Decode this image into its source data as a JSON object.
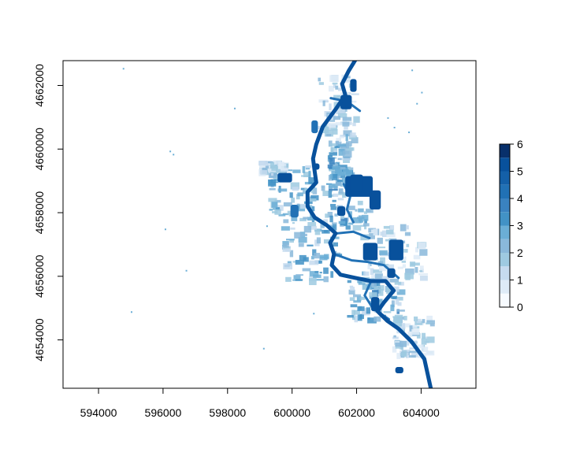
{
  "chart_data": {
    "type": "heatmap",
    "title": "",
    "xlabel": "",
    "ylabel": "",
    "xlim": [
      592900,
      605700
    ],
    "ylim": [
      4652480,
      4662780
    ],
    "x_ticks": [
      594000,
      596000,
      598000,
      600000,
      602000,
      604000
    ],
    "y_ticks": [
      4654000,
      4656000,
      4658000,
      4660000,
      4662000
    ],
    "x_tick_labels": [
      "594000",
      "596000",
      "598000",
      "600000",
      "602000",
      "604000"
    ],
    "y_tick_labels": [
      "4654000",
      "4656000",
      "4658000",
      "4660000",
      "4662000"
    ],
    "legend": {
      "type": "colorbar",
      "placement": "right",
      "range": [
        0,
        6
      ],
      "ticks": [
        "0",
        "1",
        "2",
        "3",
        "4",
        "5",
        "6"
      ],
      "breaks": [
        0,
        0.5,
        1,
        1.5,
        2,
        2.5,
        3,
        3.5,
        4,
        4.5,
        5,
        5.5,
        6
      ]
    },
    "colors": [
      "#f7fbff",
      "#deebf7",
      "#c6dbef",
      "#9ecae1",
      "#8ab8da",
      "#6baed6",
      "#4292c6",
      "#3a82c0",
      "#2171b5",
      "#1460a8",
      "#08519c",
      "#08306b"
    ],
    "grid": false,
    "features": {
      "river_channel": [
        [
          601950,
          4662780
        ],
        [
          601750,
          4662450
        ],
        [
          601550,
          4662050
        ],
        [
          601650,
          4661700
        ],
        [
          601350,
          4661250
        ],
        [
          600950,
          4660700
        ],
        [
          600750,
          4660150
        ],
        [
          600650,
          4659700
        ],
        [
          600700,
          4659300
        ],
        [
          600750,
          4658950
        ],
        [
          600480,
          4658650
        ],
        [
          600480,
          4658200
        ],
        [
          600700,
          4657850
        ],
        [
          601080,
          4657600
        ],
        [
          601350,
          4657350
        ],
        [
          601180,
          4657050
        ],
        [
          601300,
          4656700
        ],
        [
          601230,
          4656350
        ],
        [
          601500,
          4656050
        ],
        [
          601950,
          4655950
        ],
        [
          602450,
          4655850
        ],
        [
          602900,
          4655850
        ],
        [
          603150,
          4655550
        ],
        [
          602850,
          4655180
        ],
        [
          602650,
          4654900
        ],
        [
          602950,
          4654600
        ],
        [
          603300,
          4654350
        ],
        [
          603700,
          4653950
        ],
        [
          604100,
          4653400
        ],
        [
          604300,
          4652480
        ]
      ],
      "secondary_channels": [
        [
          [
            601300,
            4656700
          ],
          [
            601850,
            4656500
          ],
          [
            602350,
            4656450
          ],
          [
            602850,
            4656350
          ],
          [
            603300,
            4655950
          ]
        ],
        [
          [
            601400,
            4657350
          ],
          [
            601900,
            4657400
          ],
          [
            602400,
            4657200
          ]
        ],
        [
          [
            601600,
            4658900
          ],
          [
            601800,
            4658500
          ],
          [
            601700,
            4658100
          ],
          [
            601900,
            4657700
          ]
        ],
        [
          [
            602450,
            4655850
          ],
          [
            602250,
            4655400
          ],
          [
            602500,
            4655000
          ],
          [
            603000,
            4654650
          ]
        ],
        [
          [
            601200,
            4661600
          ],
          [
            601700,
            4661500
          ],
          [
            602100,
            4661200
          ]
        ]
      ],
      "high_patches": [
        {
          "x": [
            601650,
            602500
          ],
          "y": [
            4658500,
            4659150
          ],
          "value": 5
        },
        {
          "x": [
            602400,
            602750
          ],
          "y": [
            4658100,
            4658700
          ],
          "value": 5
        },
        {
          "x": [
            601800,
            602200
          ],
          "y": [
            4658650,
            4659200
          ],
          "value": 5
        },
        {
          "x": [
            603000,
            603450
          ],
          "y": [
            4656500,
            4657150
          ],
          "value": 5
        },
        {
          "x": [
            602200,
            602650
          ],
          "y": [
            4656500,
            4657050
          ],
          "value": 5
        },
        {
          "x": [
            601500,
            601850
          ],
          "y": [
            4661250,
            4661700
          ],
          "value": 5
        },
        {
          "x": [
            601800,
            602000
          ],
          "y": [
            4661800,
            4662200
          ],
          "value": 5
        },
        {
          "x": [
            602450,
            602700
          ],
          "y": [
            4654900,
            4655350
          ],
          "value": 5
        },
        {
          "x": [
            602950,
            603200
          ],
          "y": [
            4655950,
            4656250
          ],
          "value": 5
        },
        {
          "x": [
            599550,
            600000
          ],
          "y": [
            4658950,
            4659250
          ],
          "value": 5
        },
        {
          "x": [
            599950,
            600200
          ],
          "y": [
            4657850,
            4658250
          ],
          "value": 4
        },
        {
          "x": [
            601400,
            601650
          ],
          "y": [
            4657900,
            4658200
          ],
          "value": 5
        },
        {
          "x": [
            603200,
            603450
          ],
          "y": [
            4652950,
            4653150
          ],
          "value": 5
        },
        {
          "x": [
            600600,
            600800
          ],
          "y": [
            4660500,
            4660900
          ],
          "value": 4
        },
        {
          "x": [
            600650,
            600850
          ],
          "y": [
            4659350,
            4659550
          ],
          "value": 5
        }
      ],
      "medium_patches": [
        {
          "x": [
            599250,
            600650
          ],
          "y": [
            4657800,
            4659500
          ],
          "value": 2
        },
        {
          "x": [
            599650,
            601400
          ],
          "y": [
            4655900,
            4657800
          ],
          "value": 2
        },
        {
          "x": [
            600900,
            602300
          ],
          "y": [
            4657600,
            4659000
          ],
          "value": 2
        },
        {
          "x": [
            602100,
            604000
          ],
          "y": [
            4656000,
            4657700
          ],
          "value": 1
        },
        {
          "x": [
            601700,
            603300
          ],
          "y": [
            4654700,
            4656000
          ],
          "value": 2
        },
        {
          "x": [
            603100,
            604300
          ],
          "y": [
            4653500,
            4654800
          ],
          "value": 1
        },
        {
          "x": [
            600800,
            601900
          ],
          "y": [
            4660200,
            4662500
          ],
          "value": 1
        },
        {
          "x": [
            598950,
            599700
          ],
          "y": [
            4659300,
            4659650
          ],
          "value": 1
        },
        {
          "x": [
            601100,
            601700
          ],
          "y": [
            4659000,
            4660300
          ],
          "value": 2
        }
      ],
      "specks": [
        [
          596200,
          4659950
        ],
        [
          596300,
          4659850
        ],
        [
          594750,
          4662550
        ],
        [
          602950,
          4661000
        ],
        [
          603850,
          4661450
        ],
        [
          604000,
          4661800
        ],
        [
          598200,
          4661300
        ],
        [
          603700,
          4662500
        ],
        [
          596050,
          4657500
        ],
        [
          600650,
          4654850
        ],
        [
          596700,
          4656200
        ],
        [
          595000,
          4654900
        ],
        [
          599100,
          4653750
        ],
        [
          603150,
          4660700
        ],
        [
          603600,
          4660550
        ],
        [
          599200,
          4657600
        ]
      ]
    }
  }
}
